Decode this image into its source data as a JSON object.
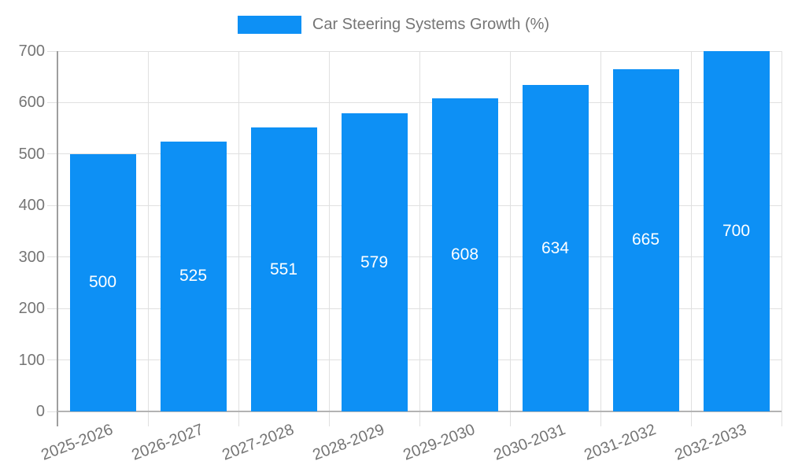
{
  "chart_data": {
    "type": "bar",
    "title": "Car Steering Systems Growth (%)",
    "categories": [
      "2025-2026",
      "2026-2027",
      "2027-2028",
      "2028-2029",
      "2029-2030",
      "2030-2031",
      "2031-2032",
      "2032-2033"
    ],
    "values": [
      500,
      525,
      551,
      579,
      608,
      634,
      665,
      700
    ],
    "value_labels_shown": true,
    "xlabel": "",
    "ylabel": "",
    "ylim": [
      0,
      700
    ],
    "yticks": [
      0,
      100,
      200,
      300,
      400,
      500,
      600,
      700
    ],
    "grid": true,
    "legend_position": "top-center",
    "x_tick_angle_deg": -21,
    "colors": {
      "bar": "#0D90F5",
      "value_label": "#FFFFFF",
      "tick_label": "#757575",
      "gridline": "#E0E0E0",
      "axis_line_left": "#9E9E9E",
      "axis_line_bottom": "#B3B3B3",
      "background": "#FFFFFF"
    }
  }
}
